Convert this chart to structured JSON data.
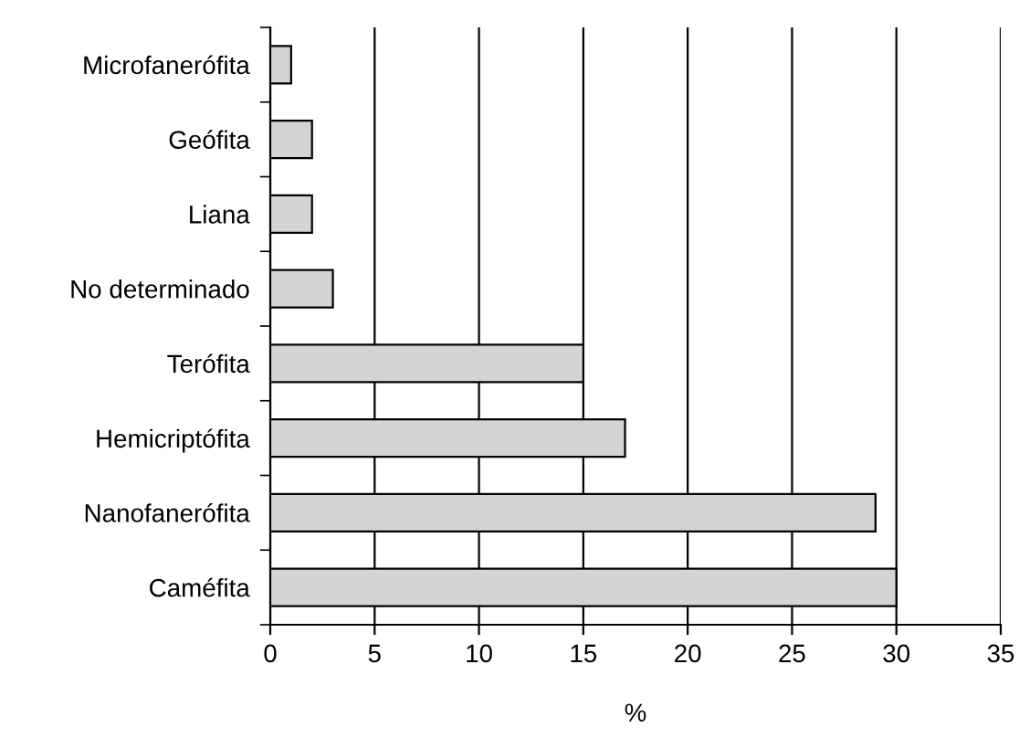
{
  "chart_data": {
    "type": "bar",
    "orientation": "horizontal",
    "xlabel": "%",
    "categories": [
      "Microfanerófita",
      "Geófita",
      "Liana",
      "No determinado",
      "Terófita",
      "Hemicriptófita",
      "Nanofanerófita",
      "Caméfita"
    ],
    "values": [
      1,
      2,
      2,
      3,
      15,
      17,
      29,
      30
    ],
    "color": "#d4d4d4",
    "xlim": [
      0,
      35
    ],
    "xticks": [
      0,
      5,
      10,
      15,
      20,
      25,
      30,
      35
    ],
    "grid": "x"
  }
}
